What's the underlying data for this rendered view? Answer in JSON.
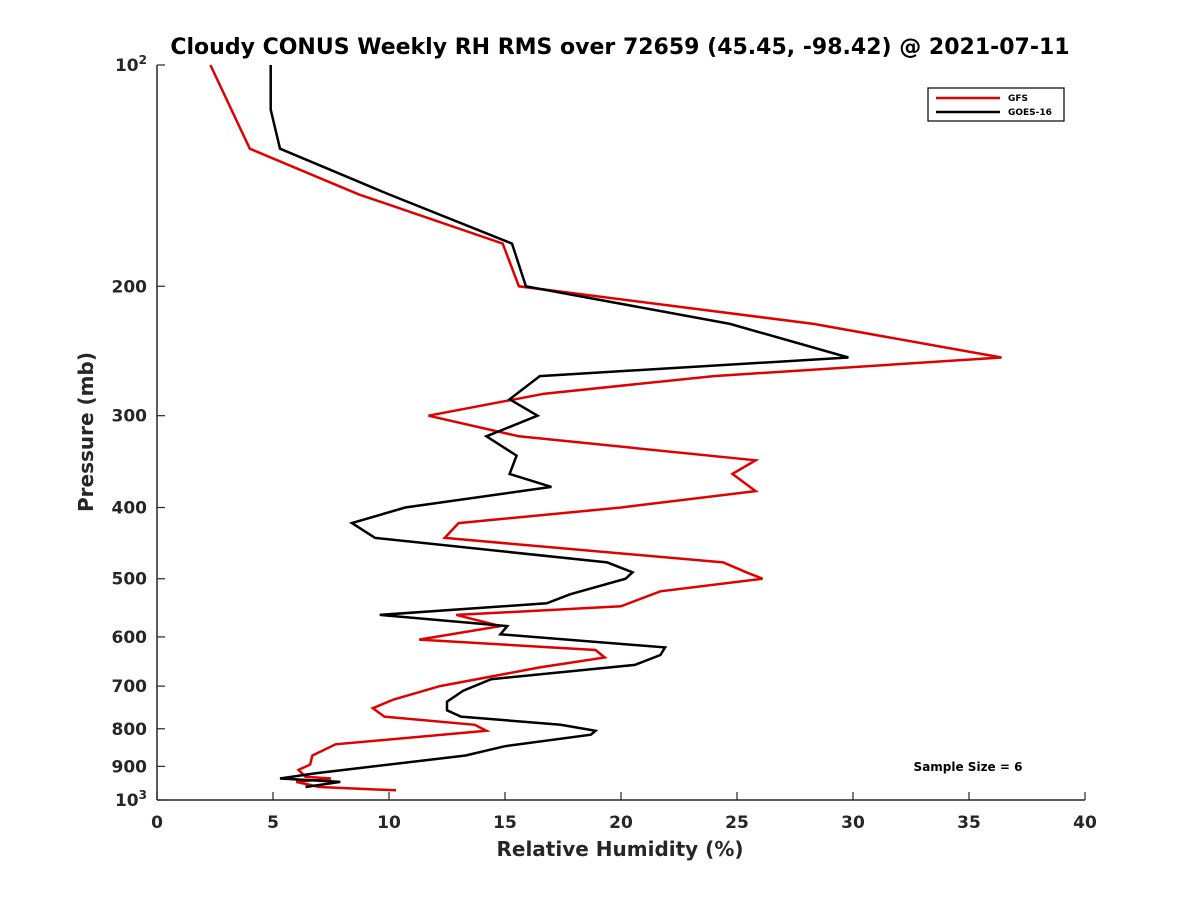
{
  "chart_data": {
    "type": "line",
    "title": "Cloudy CONUS Weekly RH RMS over 72659 (45.45, -98.42) @ 2021-07-11",
    "xlabel": "Relative Humidity (%)",
    "ylabel": "Pressure (mb)",
    "xlim": [
      0,
      40
    ],
    "ylim": [
      100,
      1000
    ],
    "yscale": "log",
    "y_reversed": true,
    "x_ticks": [
      "0",
      "5",
      "10",
      "15",
      "20",
      "25",
      "30",
      "35",
      "40"
    ],
    "y_ticks": [
      {
        "value": 100,
        "label": "10",
        "sup": "2"
      },
      {
        "value": 200,
        "label": "200"
      },
      {
        "value": 300,
        "label": "300"
      },
      {
        "value": 400,
        "label": "400"
      },
      {
        "value": 500,
        "label": "500"
      },
      {
        "value": 600,
        "label": "600"
      },
      {
        "value": 700,
        "label": "700"
      },
      {
        "value": 800,
        "label": "800"
      },
      {
        "value": 900,
        "label": "900"
      },
      {
        "value": 1000,
        "label": "10",
        "sup": "3"
      }
    ],
    "legend_position": "top-right",
    "grid": false,
    "annotation": "Sample Size = 6",
    "series": [
      {
        "name": "GFS",
        "color": "#e00000",
        "points": [
          [
            2.3,
            100
          ],
          [
            4.0,
            130
          ],
          [
            8.7,
            150
          ],
          [
            14.9,
            175
          ],
          [
            15.6,
            200
          ],
          [
            28.3,
            225
          ],
          [
            36.4,
            250
          ],
          [
            24.0,
            265
          ],
          [
            16.7,
            280
          ],
          [
            11.7,
            300
          ],
          [
            15.6,
            320
          ],
          [
            25.8,
            345
          ],
          [
            24.8,
            360
          ],
          [
            25.8,
            380
          ],
          [
            20.0,
            400
          ],
          [
            13.0,
            420
          ],
          [
            12.4,
            440
          ],
          [
            24.4,
            475
          ],
          [
            25.4,
            490
          ],
          [
            26.1,
            500
          ],
          [
            21.7,
            520
          ],
          [
            20.0,
            545
          ],
          [
            12.9,
            560
          ],
          [
            14.8,
            580
          ],
          [
            11.3,
            605
          ],
          [
            18.9,
            625
          ],
          [
            19.3,
            640
          ],
          [
            16.5,
            660
          ],
          [
            12.2,
            700
          ],
          [
            10.2,
            730
          ],
          [
            9.3,
            750
          ],
          [
            9.8,
            770
          ],
          [
            13.7,
            790
          ],
          [
            14.2,
            805
          ],
          [
            7.7,
            840
          ],
          [
            6.7,
            870
          ],
          [
            6.6,
            895
          ],
          [
            6.1,
            910
          ],
          [
            6.4,
            930
          ],
          [
            7.5,
            935
          ],
          [
            6.0,
            945
          ],
          [
            7.0,
            960
          ],
          [
            10.3,
            970
          ]
        ]
      },
      {
        "name": "GOES-16",
        "color": "#000000",
        "points": [
          [
            4.9,
            100
          ],
          [
            4.9,
            115
          ],
          [
            5.3,
            130
          ],
          [
            10.0,
            150
          ],
          [
            15.3,
            175
          ],
          [
            15.9,
            200
          ],
          [
            24.7,
            225
          ],
          [
            29.8,
            250
          ],
          [
            16.5,
            265
          ],
          [
            15.2,
            285
          ],
          [
            16.4,
            300
          ],
          [
            14.2,
            320
          ],
          [
            15.5,
            340
          ],
          [
            15.2,
            360
          ],
          [
            17.0,
            375
          ],
          [
            10.7,
            400
          ],
          [
            8.4,
            420
          ],
          [
            9.4,
            440
          ],
          [
            19.4,
            475
          ],
          [
            20.5,
            490
          ],
          [
            20.2,
            500
          ],
          [
            17.8,
            525
          ],
          [
            16.8,
            540
          ],
          [
            9.6,
            560
          ],
          [
            15.1,
            580
          ],
          [
            14.8,
            595
          ],
          [
            21.9,
            620
          ],
          [
            21.7,
            635
          ],
          [
            20.6,
            655
          ],
          [
            14.4,
            685
          ],
          [
            13.2,
            710
          ],
          [
            12.5,
            735
          ],
          [
            12.5,
            755
          ],
          [
            13.1,
            770
          ],
          [
            17.4,
            790
          ],
          [
            18.9,
            805
          ],
          [
            18.7,
            815
          ],
          [
            15.0,
            845
          ],
          [
            13.3,
            870
          ],
          [
            6.8,
            920
          ],
          [
            5.3,
            935
          ],
          [
            7.9,
            945
          ],
          [
            6.4,
            960
          ]
        ]
      }
    ]
  }
}
